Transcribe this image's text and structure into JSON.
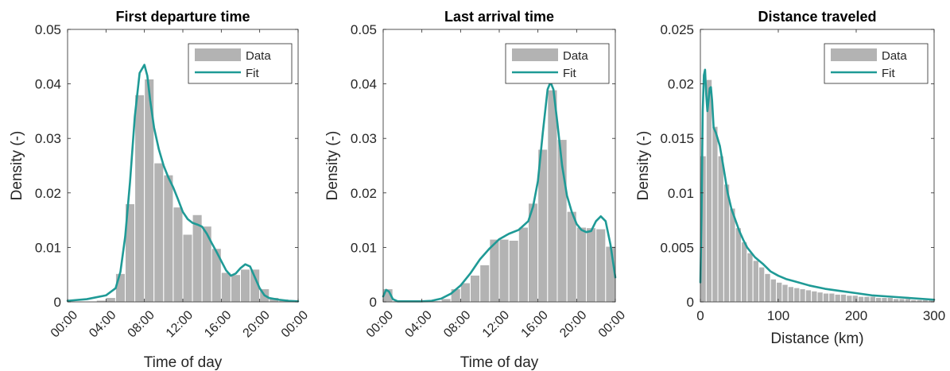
{
  "figure": {
    "background": "#ffffff",
    "bar_color": "#b3b3b3",
    "fit_color": "#1f9a96"
  },
  "chart_data": [
    {
      "type": "bar",
      "title": "First departure time",
      "xlabel": "Time of day",
      "ylabel": "Density (-)",
      "xlim": [
        0,
        24
      ],
      "ylim": [
        0,
        0.05
      ],
      "xticks": [
        0,
        4,
        8,
        12,
        16,
        20,
        24
      ],
      "xtick_labels": [
        "00:00",
        "04:00",
        "08:00",
        "12:00",
        "16:00",
        "20:00",
        "00:00"
      ],
      "xtick_rotation": 45,
      "yticks": [
        0,
        0.01,
        0.02,
        0.03,
        0.04,
        0.05
      ],
      "ytick_labels": [
        "0",
        "0.01",
        "0.02",
        "0.03",
        "0.04",
        "0.05"
      ],
      "legend": {
        "position": "top-right",
        "entries": [
          "Data",
          "Fit"
        ]
      },
      "grid": false,
      "bins": {
        "start": 0,
        "width": 1,
        "count": 24
      },
      "series": [
        {
          "name": "Data",
          "kind": "histogram",
          "values": [
            0,
            0,
            0,
            0.0003,
            0.0008,
            0.0052,
            0.018,
            0.038,
            0.0409,
            0.0255,
            0.0233,
            0.0174,
            0.0124,
            0.016,
            0.0139,
            0.0098,
            0.0054,
            0.005,
            0.006,
            0.006,
            0.0024,
            0.0008,
            0.0005,
            0.0002
          ]
        },
        {
          "name": "Fit",
          "kind": "line",
          "x": [
            0,
            2,
            4,
            5,
            5.5,
            6,
            6.5,
            7,
            7.5,
            8,
            8.3,
            8.6,
            9,
            9.5,
            10,
            10.5,
            11,
            11.5,
            12,
            12.5,
            13,
            13.5,
            14,
            14.5,
            15,
            15.5,
            16,
            16.5,
            17,
            17.5,
            18,
            18.5,
            19,
            19.5,
            20,
            20.5,
            21,
            22,
            23,
            24
          ],
          "y": [
            0.0002,
            0.0005,
            0.0012,
            0.0025,
            0.0055,
            0.012,
            0.022,
            0.034,
            0.042,
            0.0435,
            0.0415,
            0.037,
            0.032,
            0.028,
            0.025,
            0.0228,
            0.021,
            0.0188,
            0.0165,
            0.0152,
            0.0145,
            0.0142,
            0.0138,
            0.0125,
            0.0108,
            0.0092,
            0.0075,
            0.0058,
            0.0048,
            0.0052,
            0.0062,
            0.0069,
            0.0065,
            0.0045,
            0.0025,
            0.0012,
            0.0007,
            0.0004,
            0.0002,
            0.0001
          ]
        }
      ]
    },
    {
      "type": "bar",
      "title": "Last arrival time",
      "xlabel": "Time of day",
      "ylabel": "Density (-)",
      "xlim": [
        0,
        24
      ],
      "ylim": [
        0,
        0.05
      ],
      "xticks": [
        0,
        4,
        8,
        12,
        16,
        20,
        24
      ],
      "xtick_labels": [
        "00:00",
        "04:00",
        "08:00",
        "12:00",
        "16:00",
        "20:00",
        "00:00"
      ],
      "xtick_rotation": 45,
      "yticks": [
        0,
        0.01,
        0.02,
        0.03,
        0.04,
        0.05
      ],
      "ytick_labels": [
        "0",
        "0.01",
        "0.02",
        "0.03",
        "0.04",
        "0.05"
      ],
      "legend": {
        "position": "top-right",
        "entries": [
          "Data",
          "Fit"
        ]
      },
      "grid": false,
      "bins": {
        "start": 0,
        "width": 1,
        "count": 24
      },
      "series": [
        {
          "name": "Data",
          "kind": "histogram",
          "values": [
            0.0024,
            0.0002,
            0.0001,
            0.0001,
            0.0001,
            0.0002,
            0.0006,
            0.0024,
            0.0035,
            0.0049,
            0.0068,
            0.0115,
            0.0115,
            0.0113,
            0.0137,
            0.0181,
            0.028,
            0.0389,
            0.0298,
            0.0166,
            0.0137,
            0.0136,
            0.0134,
            0.0102
          ]
        },
        {
          "name": "Fit",
          "kind": "line",
          "x": [
            0,
            0.3,
            0.6,
            1,
            1.5,
            2,
            3,
            4,
            5,
            6,
            7,
            8,
            9,
            10,
            11,
            12,
            13,
            14,
            15,
            15.5,
            16,
            16.5,
            17,
            17.3,
            17.6,
            18,
            18.5,
            19,
            19.5,
            20,
            20.5,
            21,
            21.5,
            22,
            22.5,
            23,
            23.5,
            24
          ],
          "y": [
            0.001,
            0.0022,
            0.0019,
            0.0005,
            0.0001,
            0.0001,
            0.0001,
            0.0001,
            0.0002,
            0.0006,
            0.0015,
            0.003,
            0.0052,
            0.0078,
            0.0098,
            0.0115,
            0.0125,
            0.0132,
            0.0148,
            0.0175,
            0.0222,
            0.031,
            0.039,
            0.0403,
            0.039,
            0.033,
            0.025,
            0.0195,
            0.0165,
            0.0143,
            0.0132,
            0.0128,
            0.013,
            0.0148,
            0.0157,
            0.0148,
            0.0105,
            0.0045
          ]
        }
      ]
    },
    {
      "type": "bar",
      "title": "Distance traveled",
      "xlabel": "Distance (km)",
      "ylabel": "Density (-)",
      "xlim": [
        0,
        300
      ],
      "ylim": [
        0,
        0.025
      ],
      "xticks": [
        0,
        100,
        200,
        300
      ],
      "xtick_labels": [
        "0",
        "100",
        "200",
        "300"
      ],
      "xtick_rotation": 0,
      "yticks": [
        0,
        0.005,
        0.01,
        0.015,
        0.02,
        0.025
      ],
      "ytick_labels": [
        "0",
        "0.005",
        "0.01",
        "0.015",
        "0.02",
        "0.025"
      ],
      "legend": {
        "position": "top-right",
        "entries": [
          "Data",
          "Fit"
        ]
      },
      "grid": false,
      "bins": {
        "start": 0,
        "width": 7.5,
        "count": 40
      },
      "series": [
        {
          "name": "Data",
          "kind": "histogram",
          "values": [
            0.0134,
            0.0204,
            0.0161,
            0.0134,
            0.0108,
            0.0086,
            0.0068,
            0.0055,
            0.0045,
            0.0038,
            0.0032,
            0.0026,
            0.0021,
            0.0018,
            0.0016,
            0.0014,
            0.0013,
            0.0012,
            0.0011,
            0.001,
            0.0009,
            0.0008,
            0.0008,
            0.0007,
            0.0007,
            0.0006,
            0.0006,
            0.0005,
            0.0005,
            0.0005,
            0.0004,
            0.0004,
            0.0004,
            0.0003,
            0.0003,
            0.0003,
            0.0002,
            0.0002,
            0.0002,
            0.0002
          ]
        },
        {
          "name": "Fit",
          "kind": "line",
          "x": [
            0,
            1.5,
            3,
            4.5,
            6,
            7.5,
            9,
            10.5,
            12,
            13.5,
            15,
            17,
            20,
            25,
            30,
            35,
            40,
            45,
            50,
            55,
            60,
            70,
            80,
            90,
            100,
            110,
            120,
            140,
            160,
            180,
            200,
            220,
            240,
            260,
            280,
            300
          ],
          "y": [
            0.0018,
            0.008,
            0.0175,
            0.0208,
            0.0213,
            0.019,
            0.0175,
            0.0185,
            0.0196,
            0.0197,
            0.0185,
            0.016,
            0.0155,
            0.0143,
            0.0122,
            0.01,
            0.0085,
            0.0075,
            0.0065,
            0.0057,
            0.005,
            0.0041,
            0.0035,
            0.0028,
            0.0024,
            0.0021,
            0.0019,
            0.0015,
            0.0012,
            0.001,
            0.0008,
            0.0006,
            0.0005,
            0.0004,
            0.0003,
            0.0002
          ]
        }
      ]
    }
  ]
}
